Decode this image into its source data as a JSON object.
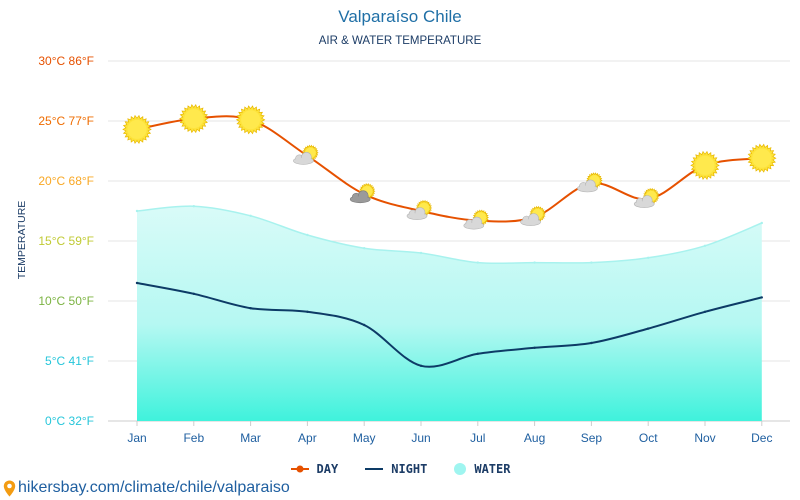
{
  "chart_data": {
    "type": "line",
    "title": "Valparaíso Chile",
    "subtitle": "AIR & WATER TEMPERATURE",
    "ylabel": "TEMPERATURE",
    "xlabel": "",
    "ylim": [
      0,
      30
    ],
    "grid": true,
    "categories": [
      "Jan",
      "Feb",
      "Mar",
      "Apr",
      "May",
      "Jun",
      "Jul",
      "Aug",
      "Sep",
      "Oct",
      "Nov",
      "Dec"
    ],
    "y_ticks": [
      {
        "value": 0,
        "label": "0°C 32°F",
        "color": "#26c6da"
      },
      {
        "value": 5,
        "label": "5°C 41°F",
        "color": "#26c6da"
      },
      {
        "value": 10,
        "label": "10°C 50°F",
        "color": "#7cb342"
      },
      {
        "value": 15,
        "label": "15°C 59°F",
        "color": "#c0ca33"
      },
      {
        "value": 20,
        "label": "20°C 68°F",
        "color": "#f9a825"
      },
      {
        "value": 25,
        "label": "25°C 77°F",
        "color": "#ef6c00"
      },
      {
        "value": 30,
        "label": "30°C 86°F",
        "color": "#e65100"
      }
    ],
    "series": [
      {
        "name": "DAY",
        "color": "#e65100",
        "values": [
          24.3,
          25.2,
          25.1,
          22.1,
          18.9,
          17.5,
          16.7,
          17.0,
          19.8,
          18.5,
          21.3,
          21.9
        ]
      },
      {
        "name": "NIGHT",
        "color": "#0d3b66",
        "values": [
          11.5,
          10.6,
          9.4,
          9.1,
          8.0,
          4.6,
          5.6,
          6.1,
          6.5,
          7.7,
          9.1,
          10.3
        ]
      },
      {
        "name": "WATER",
        "color": "#9ff5f0",
        "values": [
          17.5,
          17.9,
          17.1,
          15.5,
          14.4,
          14.0,
          13.2,
          13.2,
          13.2,
          13.6,
          14.6,
          16.5
        ]
      }
    ],
    "weather_icons": [
      "sun",
      "sun",
      "sun",
      "sun-cloud",
      "sun-dark-cloud",
      "sun-cloud",
      "sun-cloud",
      "sun-cloud",
      "sun-cloud",
      "sun-cloud",
      "sun",
      "sun"
    ]
  },
  "legend": {
    "day": "DAY",
    "night": "NIGHT",
    "water": "WATER"
  },
  "footer": {
    "text": "hikersbay.com/climate/chile/valparaiso",
    "icon": "location-pin-icon"
  },
  "colors": {
    "title": "#1f6fa6",
    "text": "#1c3c66",
    "grid": "#e6e6e6",
    "sun": "#fde33a",
    "sun_edge": "#e8b800",
    "cloud": "#d8d8d8",
    "dark_cloud": "#9a9a9a"
  }
}
